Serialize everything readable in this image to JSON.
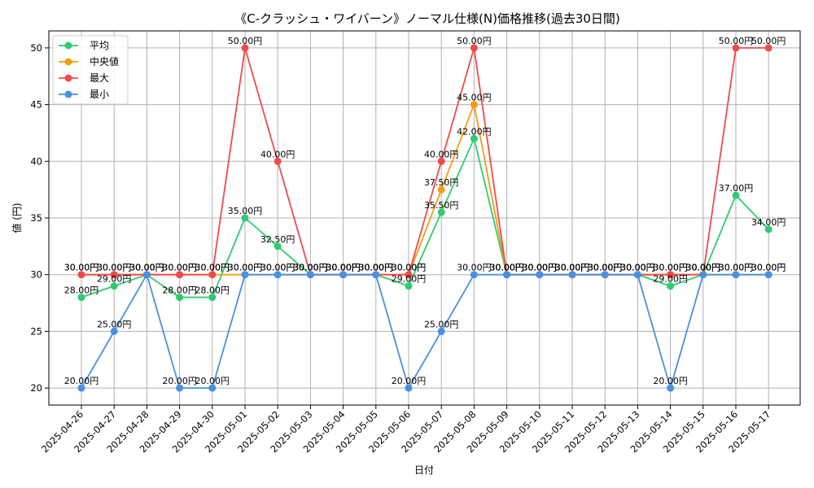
{
  "chart_data": {
    "type": "line",
    "title": "《C-クラッシュ・ワイバーン》ノーマル仕様(N)価格推移(過去30日間)",
    "xlabel": "日付",
    "ylabel": "値 (円)",
    "ylim": [
      18.5,
      51.5
    ],
    "yticks": [
      20,
      25,
      30,
      35,
      40,
      45,
      50
    ],
    "grid": true,
    "legend_position": "top-left",
    "label_suffix": "円",
    "categories": [
      "2025-04-26",
      "2025-04-27",
      "2025-04-28",
      "2025-04-29",
      "2025-04-30",
      "2025-05-01",
      "2025-05-02",
      "2025-05-03",
      "2025-05-04",
      "2025-05-05",
      "2025-05-06",
      "2025-05-07",
      "2025-05-08",
      "2025-05-09",
      "2025-05-10",
      "2025-05-11",
      "2025-05-12",
      "2025-05-13",
      "2025-05-14",
      "2025-05-15",
      "2025-05-16",
      "2025-05-17"
    ],
    "series": [
      {
        "name": "平均",
        "color": "#2ecc71",
        "values": [
          28,
          29,
          30,
          28,
          28,
          35,
          32.5,
          30,
          30,
          30,
          29,
          35.5,
          42,
          30,
          30,
          30,
          30,
          30,
          29,
          30,
          37,
          34
        ]
      },
      {
        "name": "中央値",
        "color": "#f39c12",
        "values": [
          30,
          30,
          30,
          30,
          30,
          30,
          30,
          30,
          30,
          30,
          30,
          37.5,
          45,
          30,
          30,
          30,
          30,
          30,
          30,
          30,
          30,
          30
        ]
      },
      {
        "name": "最大",
        "color": "#ef4b4b",
        "values": [
          30,
          30,
          30,
          30,
          30,
          50,
          40,
          30,
          30,
          30,
          30,
          40,
          50,
          30,
          30,
          30,
          30,
          30,
          30,
          30,
          50,
          50
        ]
      },
      {
        "name": "最小",
        "color": "#4a90e2",
        "values": [
          20,
          25,
          30,
          20,
          20,
          30,
          30,
          30,
          30,
          30,
          20,
          25,
          30,
          30,
          30,
          30,
          30,
          30,
          20,
          30,
          30,
          30
        ]
      }
    ]
  }
}
